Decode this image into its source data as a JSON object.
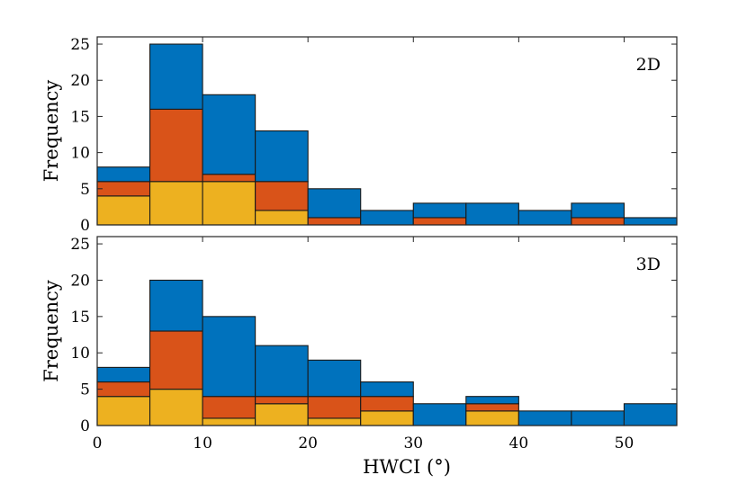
{
  "chart_data": [
    {
      "type": "bar",
      "stacked": true,
      "tag": "2D",
      "bin_edges": [
        0,
        5,
        10,
        15,
        20,
        25,
        30,
        35,
        40,
        45,
        50,
        55
      ],
      "xlim": [
        0,
        55
      ],
      "ylim": [
        0,
        26
      ],
      "yticks": [
        0,
        5,
        10,
        15,
        20,
        25
      ],
      "ylabel": "Frequency",
      "xlabel": "",
      "series": [
        {
          "name": "series-yellow",
          "color": "#EDB120",
          "values": [
            4,
            6,
            6,
            2,
            0,
            0,
            0,
            0,
            0,
            0,
            0
          ]
        },
        {
          "name": "series-orange",
          "color": "#D95319",
          "values": [
            2,
            10,
            1,
            4,
            1,
            0,
            1,
            0,
            0,
            1,
            0
          ]
        },
        {
          "name": "series-blue",
          "color": "#0072BD",
          "values": [
            2,
            9,
            11,
            7,
            4,
            2,
            2,
            3,
            2,
            2,
            1
          ]
        }
      ]
    },
    {
      "type": "bar",
      "stacked": true,
      "tag": "3D",
      "bin_edges": [
        0,
        5,
        10,
        15,
        20,
        25,
        30,
        35,
        40,
        45,
        50,
        55
      ],
      "xlim": [
        0,
        55
      ],
      "ylim": [
        0,
        26
      ],
      "yticks": [
        0,
        5,
        10,
        15,
        20,
        25
      ],
      "xticks": [
        0,
        10,
        20,
        30,
        40,
        50
      ],
      "ylabel": "Frequency",
      "xlabel": "HWCI (°)",
      "series": [
        {
          "name": "series-yellow",
          "color": "#EDB120",
          "values": [
            4,
            5,
            1,
            3,
            1,
            2,
            0,
            2,
            0,
            0,
            0
          ]
        },
        {
          "name": "series-orange",
          "color": "#D95319",
          "values": [
            2,
            8,
            3,
            1,
            3,
            2,
            0,
            1,
            0,
            0,
            0
          ]
        },
        {
          "name": "series-blue",
          "color": "#0072BD",
          "values": [
            2,
            7,
            11,
            7,
            5,
            2,
            3,
            1,
            2,
            2,
            3
          ]
        }
      ]
    }
  ]
}
